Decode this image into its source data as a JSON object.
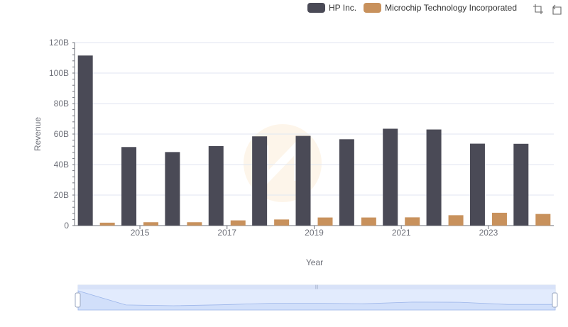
{
  "chart_data": {
    "type": "bar",
    "xlabel": "Year",
    "ylabel": "Revenue",
    "ylim": [
      0,
      120000000000
    ],
    "yticks": [
      {
        "value": 0,
        "label": "0"
      },
      {
        "value": 20000000000,
        "label": "20B"
      },
      {
        "value": 40000000000,
        "label": "40B"
      },
      {
        "value": 60000000000,
        "label": "60B"
      },
      {
        "value": 80000000000,
        "label": "80B"
      },
      {
        "value": 100000000000,
        "label": "100B"
      },
      {
        "value": 120000000000,
        "label": "120B"
      }
    ],
    "categories": [
      "2014",
      "2015",
      "2016",
      "2017",
      "2018",
      "2019",
      "2020",
      "2021",
      "2022",
      "2023",
      "2024"
    ],
    "xtick_labels": [
      "",
      "2015",
      "",
      "2017",
      "",
      "2019",
      "",
      "2021",
      "",
      "2023",
      ""
    ],
    "series": [
      {
        "name": "HP Inc.",
        "color": "#4a4a56",
        "values": [
          111500000000,
          51500000000,
          48200000000,
          52100000000,
          58500000000,
          58800000000,
          56600000000,
          63500000000,
          63000000000,
          53700000000,
          53600000000
        ]
      },
      {
        "name": "Microchip Technology Incorporated",
        "color": "#c8915c",
        "values": [
          1900000000,
          2200000000,
          2200000000,
          3400000000,
          4000000000,
          5300000000,
          5300000000,
          5400000000,
          6800000000,
          8400000000,
          7600000000
        ]
      }
    ],
    "legend_position": "top-right",
    "grid": true
  },
  "toolbox": {
    "zoom_icon": "zoom-icon",
    "restore_icon": "restore-icon"
  },
  "colors": {
    "grid": "#e0e6f1",
    "axis": "#6e7079",
    "slider_fill": "#dde7fd",
    "slider_border": "#b4c8f5"
  }
}
